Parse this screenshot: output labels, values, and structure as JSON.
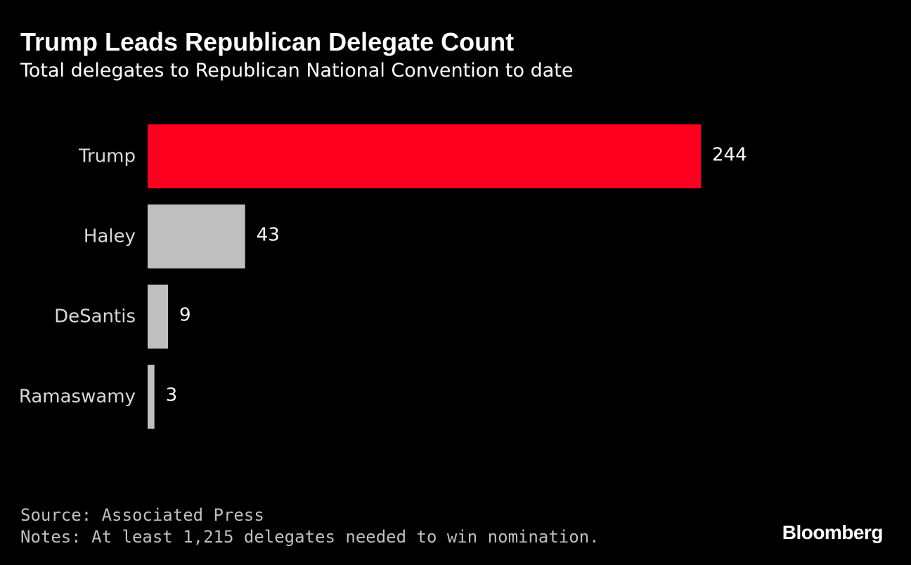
{
  "header": {
    "title": "Trump Leads Republican Delegate Count",
    "subtitle": "Total delegates to Republican National Convention to date"
  },
  "chart_data": {
    "type": "bar",
    "orientation": "horizontal",
    "title": "Trump Leads Republican Delegate Count",
    "subtitle": "Total delegates to Republican National Convention to date",
    "categories": [
      "Trump",
      "Haley",
      "DeSantis",
      "Ramaswamy"
    ],
    "values": [
      244,
      43,
      9,
      3
    ],
    "value_labels": [
      "244",
      "43",
      "9",
      "3"
    ],
    "bar_colors": [
      "#ff0021",
      "#bfbfbf",
      "#bfbfbf",
      "#bfbfbf"
    ],
    "xlim": [
      0,
      244
    ],
    "grid": false,
    "legend": "none"
  },
  "footer": {
    "source": "Source: Associated Press",
    "notes": "Notes: At least 1,215 delegates needed to win nomination.",
    "brand": "Bloomberg"
  },
  "colors": {
    "background": "#000000",
    "accent": "#ff0021",
    "muted_bar": "#bfbfbf",
    "text": "#ffffff"
  }
}
